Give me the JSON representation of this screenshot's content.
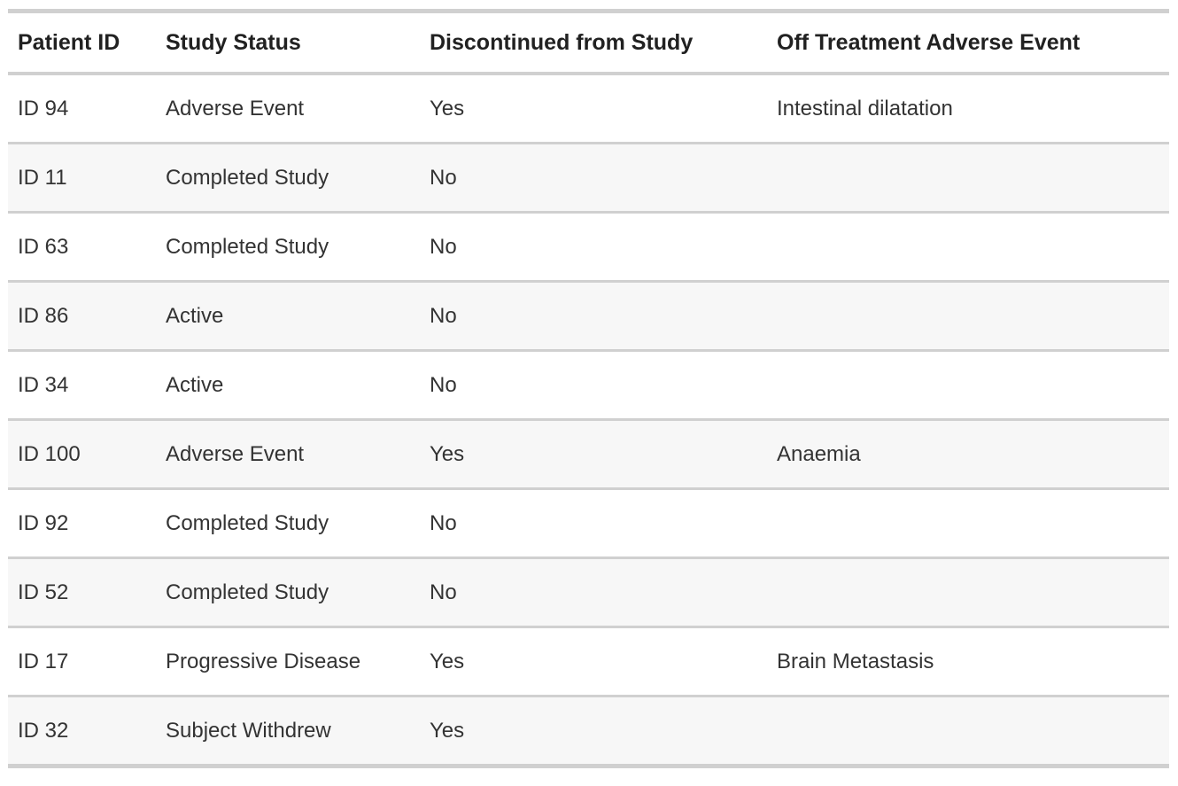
{
  "chart_data": {
    "type": "table",
    "columns": [
      "Patient ID",
      "Study Status",
      "Discontinued from Study",
      "Off Treatment Adverse Event"
    ],
    "rows": [
      [
        "ID 94",
        "Adverse Event",
        "Yes",
        "Intestinal dilatation"
      ],
      [
        "ID 11",
        "Completed Study",
        "No",
        ""
      ],
      [
        "ID 63",
        "Completed Study",
        "No",
        ""
      ],
      [
        "ID 86",
        "Active",
        "No",
        ""
      ],
      [
        "ID 34",
        "Active",
        "No",
        ""
      ],
      [
        "ID 100",
        "Adverse Event",
        "Yes",
        "Anaemia"
      ],
      [
        "ID 92",
        "Completed Study",
        "No",
        ""
      ],
      [
        "ID 52",
        "Completed Study",
        "No",
        ""
      ],
      [
        "ID 17",
        "Progressive Disease",
        "Yes",
        "Brain Metastasis"
      ],
      [
        "ID 32",
        "Subject Withdrew",
        "Yes",
        ""
      ]
    ],
    "layout": {
      "striped": true,
      "stripe_pattern": "even rows shaded"
    }
  },
  "table": {
    "headers": {
      "patient_id": "Patient ID",
      "study_status": "Study Status",
      "discontinued": "Discontinued from Study",
      "adverse_event": "Off Treatment Adverse Event"
    }
  },
  "colors": {
    "stripe_background": "#f7f7f7",
    "row_background": "#ffffff",
    "border": "#d0d0d0",
    "header_text": "#212121",
    "body_text": "#333333"
  }
}
